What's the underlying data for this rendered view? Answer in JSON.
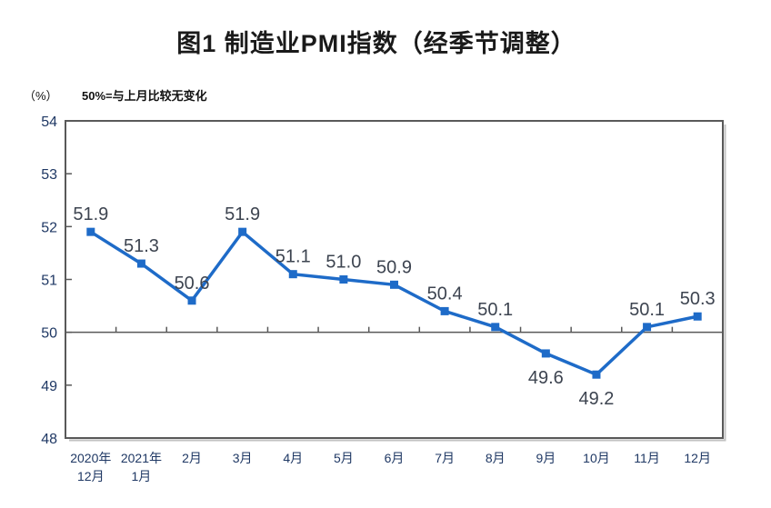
{
  "chart": {
    "title": "图1 制造业PMI指数（经季节调整）",
    "unit_label": "（%）",
    "reference_note": "50%=与上月比较无变化"
  },
  "chart_data": {
    "type": "line",
    "title": "图1 制造业PMI指数（经季节调整）",
    "ylabel": "%",
    "ylim": [
      48,
      54
    ],
    "yticks": [
      48,
      49,
      50,
      51,
      52,
      53,
      54
    ],
    "reference_line": 50,
    "grid": false,
    "legend_position": "none",
    "categories": [
      [
        "2020年",
        "12月"
      ],
      [
        "2021年",
        "1月"
      ],
      [
        "2月"
      ],
      [
        "3月"
      ],
      [
        "4月"
      ],
      [
        "5月"
      ],
      [
        "6月"
      ],
      [
        "7月"
      ],
      [
        "8月"
      ],
      [
        "9月"
      ],
      [
        "10月"
      ],
      [
        "11月"
      ],
      [
        "12月"
      ]
    ],
    "series": [
      {
        "name": "制造业PMI",
        "values": [
          51.9,
          51.3,
          50.6,
          51.9,
          51.1,
          51.0,
          50.9,
          50.4,
          50.1,
          49.6,
          49.2,
          50.1,
          50.3
        ]
      }
    ],
    "data_label_side": [
      "above",
      "above",
      "above",
      "above",
      "above",
      "above",
      "above",
      "above",
      "above",
      "below",
      "below",
      "above",
      "above"
    ],
    "colors": {
      "line": "#1E6BC8",
      "marker": "#1E6BC8",
      "data_label": "#3d4450",
      "axis": "#595959",
      "axis_shadow": "#c2c2c2",
      "tick_label": "#1F3864"
    }
  }
}
